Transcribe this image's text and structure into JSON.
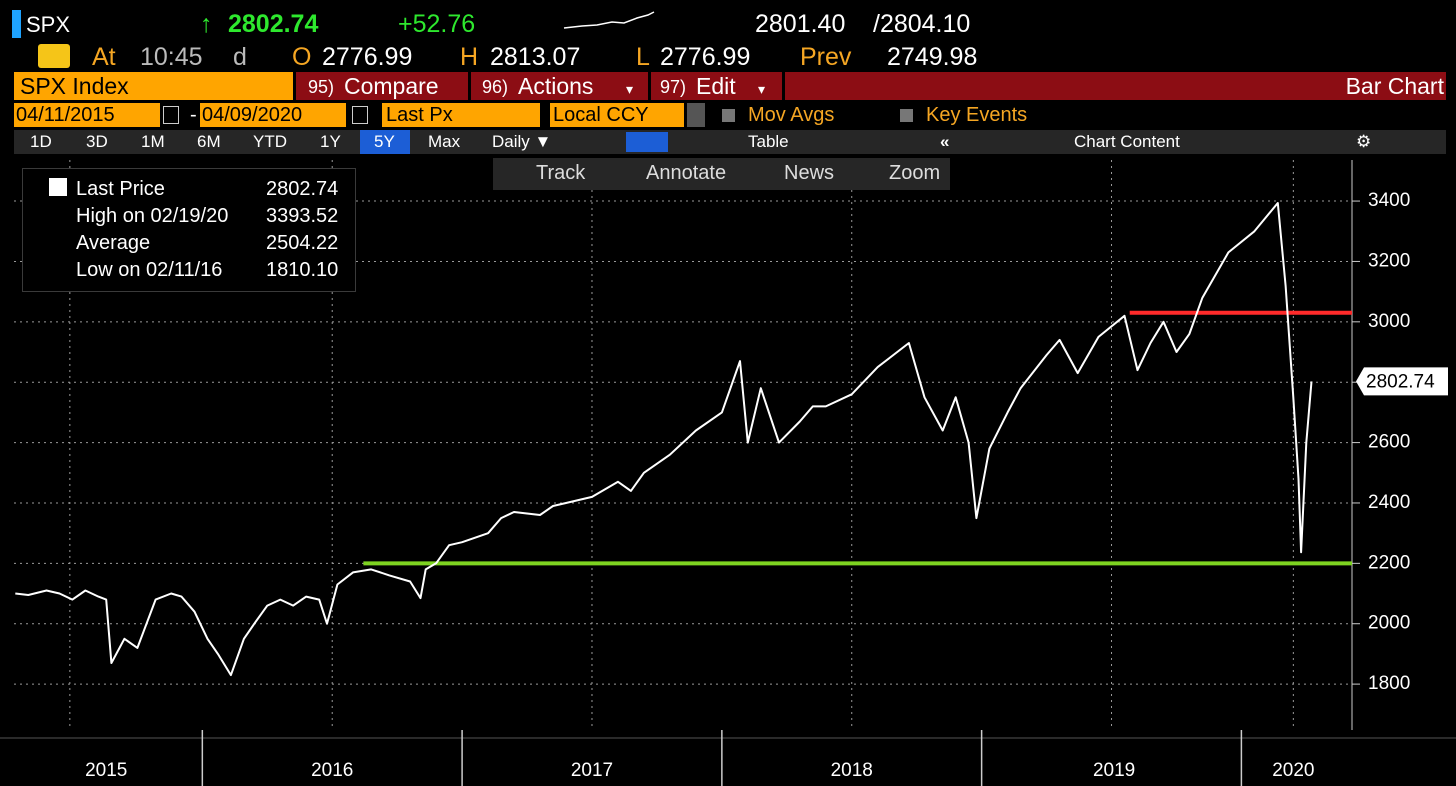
{
  "header": {
    "ticker": "SPX",
    "arrow": "↑",
    "last": "2802.74",
    "change": "+52.76",
    "bid": "2801.40",
    "ask": "/2804.10",
    "at": "At",
    "time": "10:45",
    "delay": "d",
    "open_label": "O",
    "open": "2776.99",
    "high_label": "H",
    "high": "2813.07",
    "low_label": "L",
    "low": "2776.99",
    "prev_label": "Prev",
    "prev": "2749.98",
    "security": "SPX Index",
    "compare_num": "95)",
    "compare": "Compare",
    "actions_num": "96)",
    "actions": "Actions",
    "edit_num": "97)",
    "edit": "Edit",
    "view": "Bar Chart",
    "start_date": "04/11/2015",
    "dash": "-",
    "end_date": "04/09/2020",
    "field": "Last Px",
    "currency": "Local CCY",
    "mov_avgs": "Mov Avgs",
    "key_events": "Key Events",
    "periods": [
      "1D",
      "3D",
      "1M",
      "6M",
      "YTD",
      "1Y",
      "5Y",
      "Max"
    ],
    "frequency": "Daily ▼",
    "table": "Table",
    "collapse": "«",
    "chart_content": "Chart Content"
  },
  "toolbar": [
    "Track",
    "Annotate",
    "News",
    "Zoom"
  ],
  "stats": [
    {
      "label": "Last Price",
      "value": "2802.74"
    },
    {
      "label": "High on 02/19/20",
      "value": "3393.52"
    },
    {
      "label": "Average",
      "value": "2504.22"
    },
    {
      "label": "Low on 02/11/16",
      "value": "1810.10"
    }
  ],
  "chart_data": {
    "type": "line",
    "color": "#ffffff",
    "x": [
      2015.28,
      2015.33,
      2015.4,
      2015.45,
      2015.5,
      2015.55,
      2015.6,
      2015.63,
      2015.65,
      2015.7,
      2015.75,
      2015.82,
      2015.88,
      2015.92,
      2015.97,
      2016.02,
      2016.06,
      2016.11,
      2016.16,
      2016.2,
      2016.25,
      2016.3,
      2016.35,
      2016.4,
      2016.45,
      2016.48,
      2016.52,
      2016.58,
      2016.65,
      2016.72,
      2016.8,
      2016.84,
      2016.86,
      2016.9,
      2016.95,
      2017.0,
      2017.1,
      2017.15,
      2017.2,
      2017.3,
      2017.35,
      2017.4,
      2017.5,
      2017.6,
      2017.65,
      2017.7,
      2017.8,
      2017.9,
      2018.0,
      2018.07,
      2018.1,
      2018.15,
      2018.22,
      2018.3,
      2018.35,
      2018.4,
      2018.5,
      2018.6,
      2018.72,
      2018.78,
      2018.85,
      2018.9,
      2018.95,
      2018.98,
      2019.03,
      2019.1,
      2019.15,
      2019.25,
      2019.3,
      2019.37,
      2019.45,
      2019.55,
      2019.6,
      2019.65,
      2019.7,
      2019.75,
      2019.8,
      2019.85,
      2019.95,
      2020.05,
      2020.14,
      2020.17,
      2020.2,
      2020.22,
      2020.23,
      2020.25,
      2020.27
    ],
    "values": [
      2100,
      2095,
      2110,
      2100,
      2080,
      2110,
      2090,
      2080,
      1870,
      1950,
      1920,
      2080,
      2100,
      2090,
      2040,
      1950,
      1900,
      1830,
      1950,
      2000,
      2060,
      2080,
      2060,
      2090,
      2080,
      2000,
      2130,
      2170,
      2180,
      2160,
      2140,
      2085,
      2180,
      2200,
      2260,
      2270,
      2300,
      2350,
      2370,
      2360,
      2390,
      2400,
      2420,
      2470,
      2440,
      2500,
      2560,
      2640,
      2700,
      2870,
      2600,
      2780,
      2600,
      2670,
      2720,
      2720,
      2760,
      2850,
      2930,
      2750,
      2640,
      2750,
      2600,
      2350,
      2580,
      2700,
      2780,
      2890,
      2940,
      2830,
      2950,
      3020,
      2840,
      2930,
      3000,
      2900,
      2960,
      3080,
      3230,
      3300,
      3393.52,
      3120,
      2750,
      2480,
      2237,
      2600,
      2802.74
    ],
    "price_tag": "2802.74",
    "levels": [
      {
        "value": 3030,
        "start": 2019.57,
        "color": "#ff2a2a"
      },
      {
        "value": 2200,
        "start": 2016.62,
        "color": "#7ed321"
      }
    ],
    "xlim": [
      2015.275,
      2020.83
    ],
    "ylim": [
      1648,
      3536
    ],
    "yticks": [
      1800,
      2000,
      2200,
      2400,
      2600,
      2800,
      3000,
      3200,
      3400
    ],
    "xgrid": [
      2015.49,
      2016.5,
      2017.5,
      2018.5,
      2019.5,
      2020.2
    ],
    "year_breaks": [
      2016,
      2017,
      2018,
      2019,
      2020
    ],
    "xticks": [
      {
        "value": 2015.63,
        "label": "2015"
      },
      {
        "value": 2016.5,
        "label": "2016"
      },
      {
        "value": 2017.5,
        "label": "2017"
      },
      {
        "value": 2018.5,
        "label": "2018"
      },
      {
        "value": 2019.51,
        "label": "2019"
      },
      {
        "value": 2020.2,
        "label": "2020"
      }
    ],
    "grid": true
  }
}
